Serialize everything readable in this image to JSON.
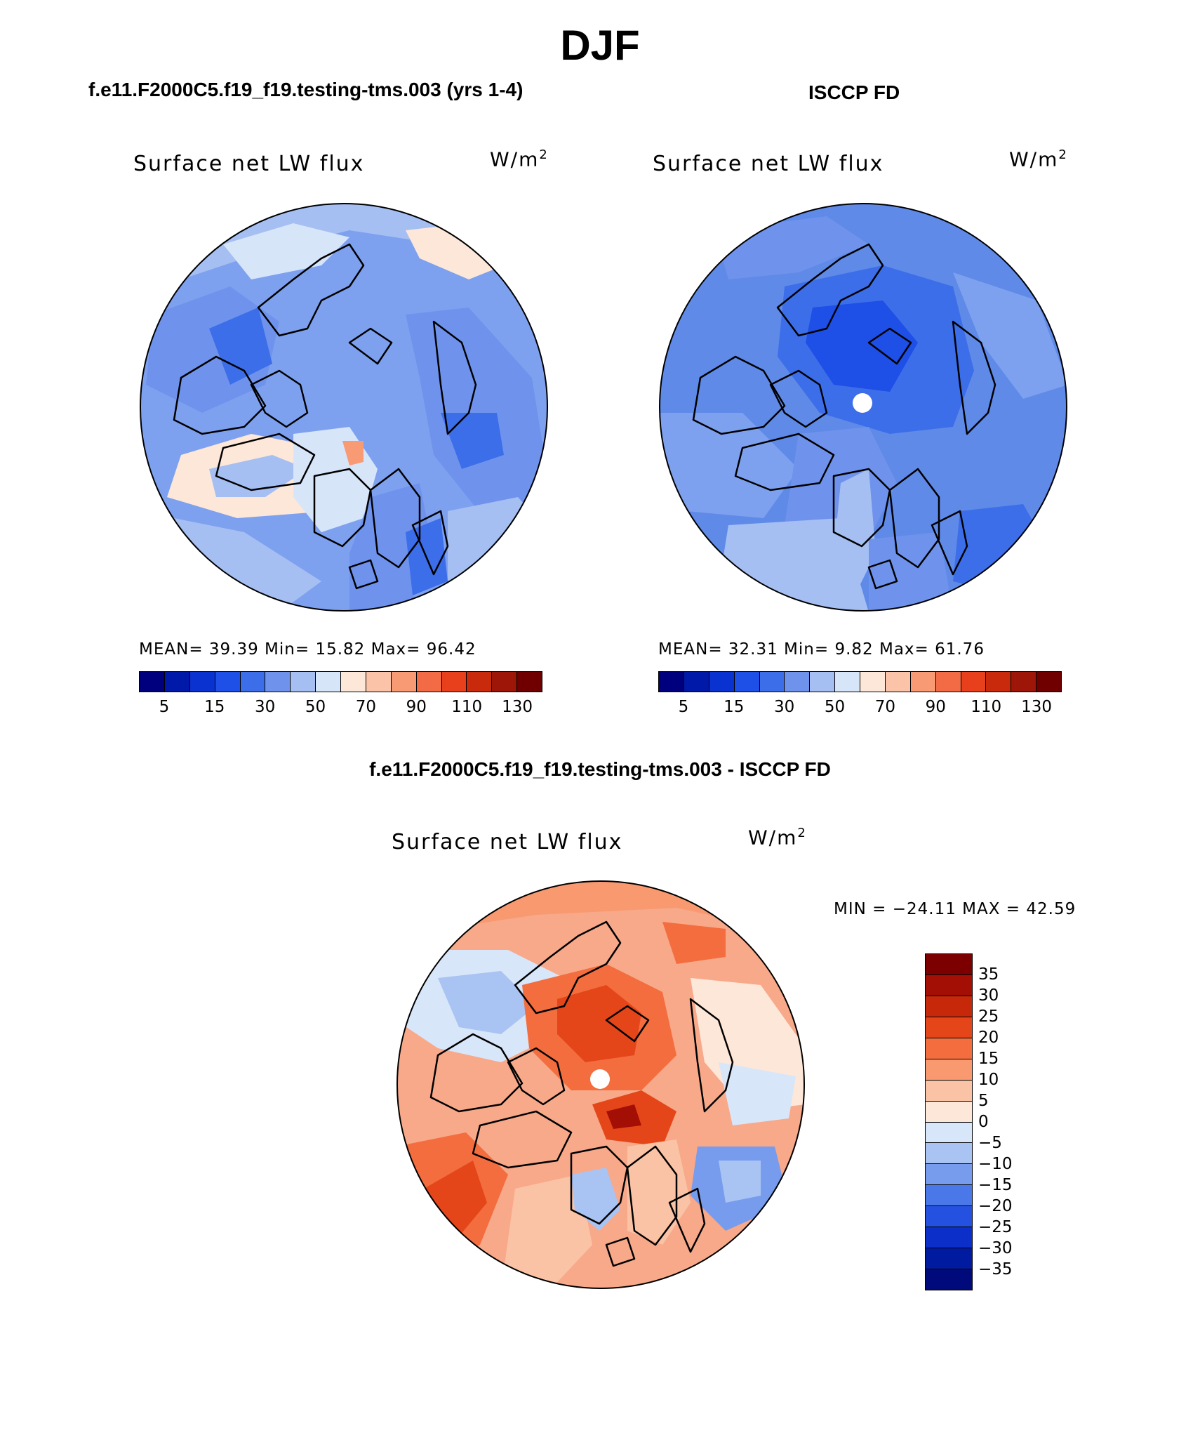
{
  "title": "DJF",
  "panels": [
    {
      "id": "model",
      "title": "f.e11.F2000C5.f19_f19.testing-tms.003 (yrs 1-4)",
      "variable": "Surface net LW flux",
      "units_base": "W/m",
      "units_exp": "2",
      "stats_text": "MEAN=   39.39   Min=   15.82   Max=   96.42",
      "pole_marker": false,
      "base_color": "#7ea1ef"
    },
    {
      "id": "obs",
      "title": "ISCCP FD",
      "variable": "Surface net LW flux",
      "units_base": "W/m",
      "units_exp": "2",
      "stats_text": "MEAN=   32.31   Min=    9.82   Max=   61.76",
      "pole_marker": true,
      "base_color": "#5f8ae8"
    },
    {
      "id": "diff",
      "title": "f.e11.F2000C5.f19_f19.testing-tms.003 - ISCCP FD",
      "variable": "Surface net LW flux",
      "units_base": "W/m",
      "units_exp": "2",
      "stats_text": "MIN = −24.11  MAX =   42.59",
      "pole_marker": true,
      "base_color": "#f7a98a"
    }
  ],
  "colorbar_abs": {
    "colors": [
      "#00007f",
      "#0019a8",
      "#0a32d0",
      "#1e4fe6",
      "#3c6ee9",
      "#6f93ec",
      "#a6bff3",
      "#d7e5f9",
      "#fde7d9",
      "#fbc4a8",
      "#f89a74",
      "#f36b44",
      "#e8401c",
      "#c92a0c",
      "#9e1608",
      "#700000"
    ],
    "tick_labels": [
      "5",
      "15",
      "30",
      "50",
      "70",
      "90",
      "110",
      "130"
    ]
  },
  "colorbar_diff": {
    "colors": [
      "#7c0000",
      "#a40f05",
      "#c8280a",
      "#e4461a",
      "#f36d3e",
      "#f89970",
      "#fac3a5",
      "#fde7d9",
      "#d8e6f9",
      "#a9c3f3",
      "#779ced",
      "#4a78e8",
      "#2451e0",
      "#0b2fc8",
      "#001ba0",
      "#000a7a"
    ],
    "tick_labels": [
      "35",
      "30",
      "25",
      "20",
      "15",
      "10",
      "5",
      "0",
      "−5",
      "−10",
      "−15",
      "−20",
      "−25",
      "−30",
      "−35"
    ]
  }
}
